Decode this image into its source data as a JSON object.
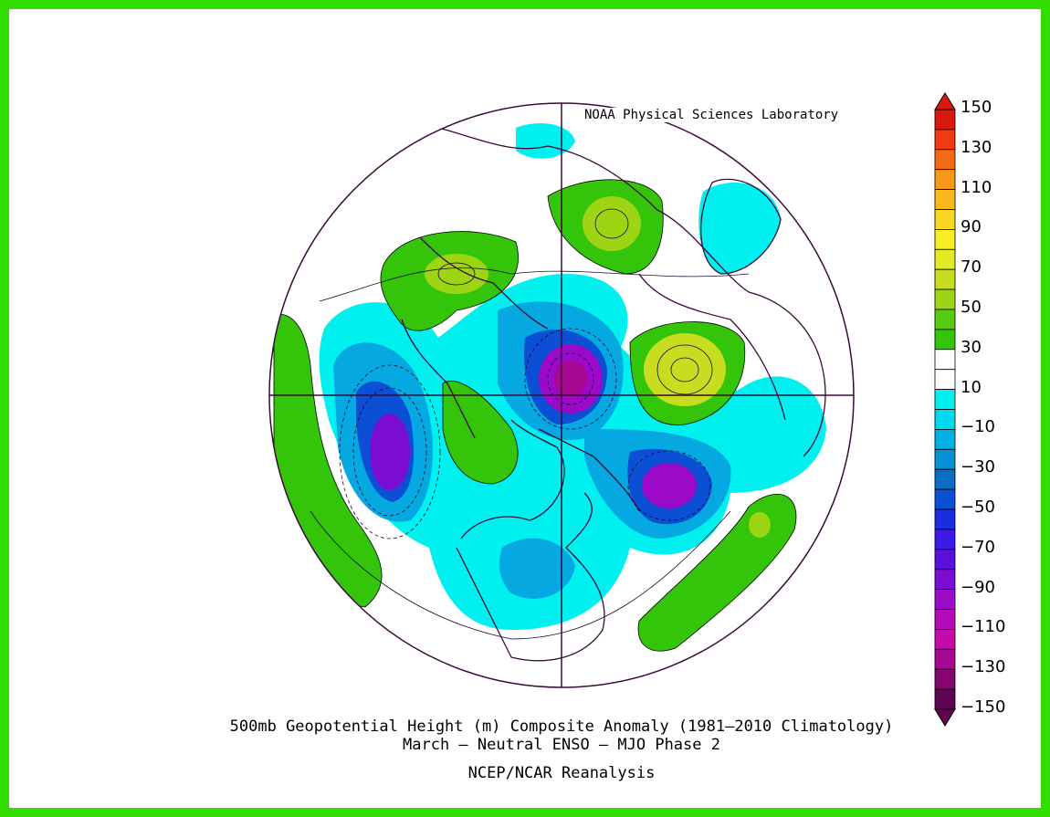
{
  "credit": "NOAA Physical Sciences Laboratory",
  "caption": {
    "line1": "500mb Geopotential Height (m) Composite Anomaly (1981–2010 Climatology)",
    "line2": "March – Neutral ENSO – MJO Phase 2",
    "line3": "NCEP/NCAR Reanalysis"
  },
  "colorbar": {
    "labels": [
      "150",
      "130",
      "110",
      "90",
      "70",
      "50",
      "30",
      "10",
      "−10",
      "−30",
      "−50",
      "−70",
      "−90",
      "−110",
      "−130",
      "−150"
    ],
    "colors": [
      "#d7190f",
      "#ef3a14",
      "#f56a15",
      "#f79918",
      "#f9b81c",
      "#f9d821",
      "#f9ee26",
      "#e2ea23",
      "#c8dd1f",
      "#9dd414",
      "#55cc0f",
      "#34c40a",
      "#ffffff",
      "#ffffff",
      "#00f0f0",
      "#00d9ef",
      "#00b2e3",
      "#0592d4",
      "#0a6dc4",
      "#0a4fd4",
      "#1a2ee0",
      "#3f1ae6",
      "#5a0fdc",
      "#7b0cd4",
      "#9a0ac8",
      "#b40ab8",
      "#c40aa8",
      "#a60892",
      "#84066e",
      "#5e0452"
    ]
  }
}
